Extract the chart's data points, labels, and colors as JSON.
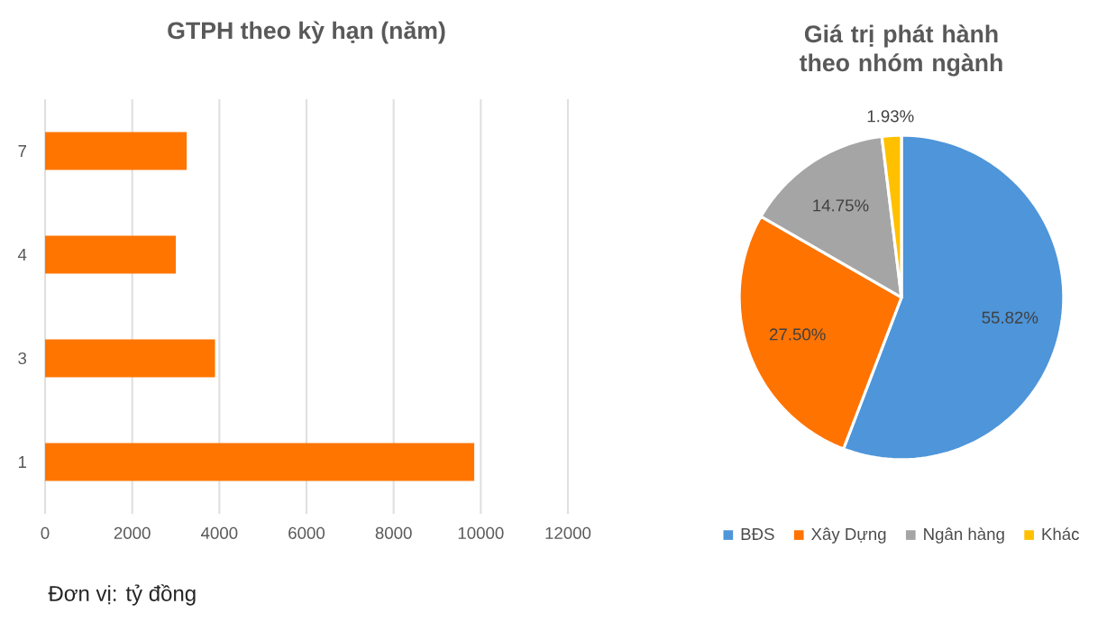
{
  "chart_data": [
    {
      "type": "bar",
      "orientation": "horizontal",
      "title": "GTPH theo kỳ hạn (năm)",
      "categories": [
        "7",
        "4",
        "3",
        "1"
      ],
      "values": [
        3250,
        3000,
        3900,
        9850
      ],
      "color": "#ff7500",
      "xlim": [
        0,
        12000
      ],
      "xticks": [
        0,
        2000,
        4000,
        6000,
        8000,
        10000,
        12000
      ],
      "grid": "x",
      "annotations": [
        "Đơn vị: tỷ đồng"
      ]
    },
    {
      "type": "pie",
      "title": "Giá trị phát hành theo nhóm ngành",
      "categories": [
        "BĐS",
        "Xây Dựng",
        "Ngân hàng",
        "Khác"
      ],
      "values": [
        55.82,
        27.5,
        14.75,
        1.93
      ],
      "value_labels": [
        "55.82%",
        "27.50%",
        "14.75%",
        "1.93%"
      ],
      "colors": [
        "#4e95d9",
        "#ff7300",
        "#a5a5a5",
        "#ffc000"
      ],
      "legend": "bottom"
    }
  ]
}
